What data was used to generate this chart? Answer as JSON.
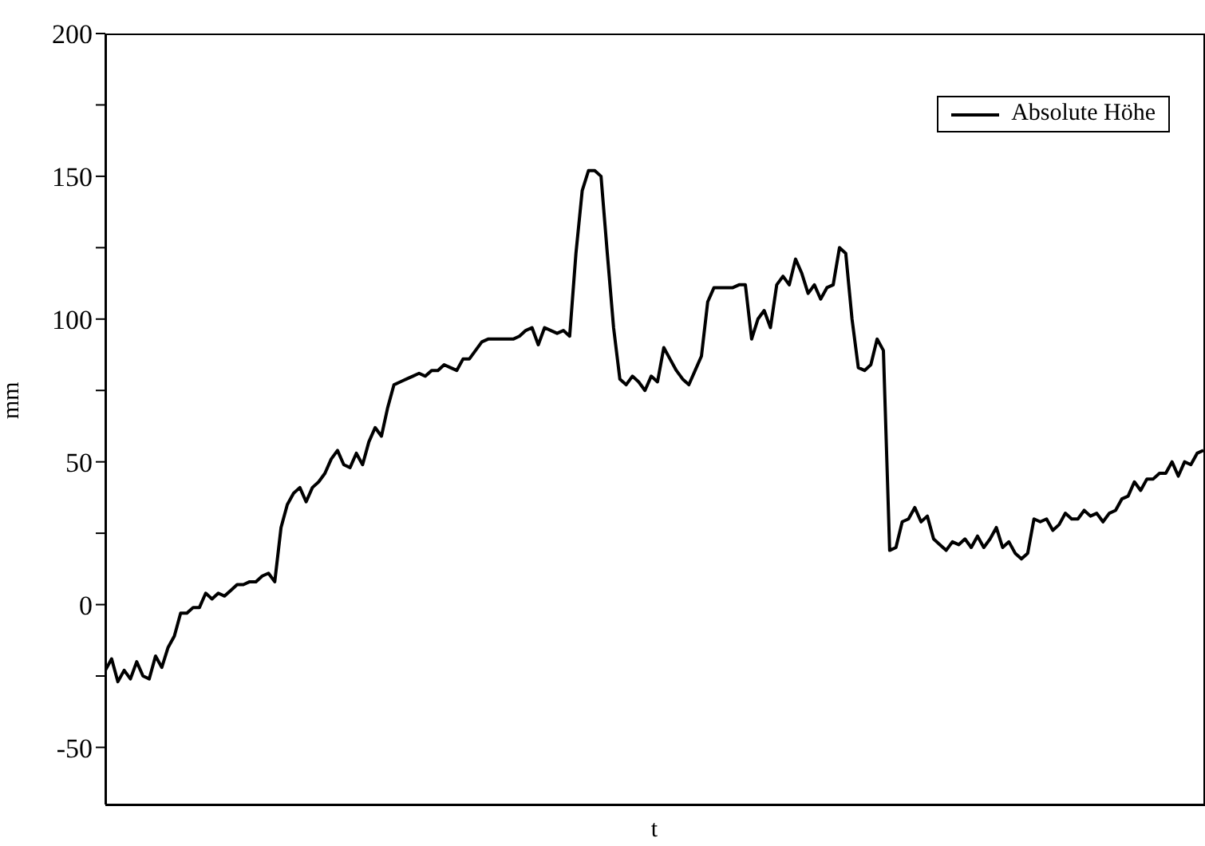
{
  "chart_data": {
    "type": "line",
    "xlabel": "t",
    "ylabel": "mm",
    "categories": [
      null,
      null,
      null,
      null,
      null,
      null,
      null,
      null,
      null,
      null,
      null,
      null,
      null,
      null,
      null,
      null,
      null,
      null,
      null,
      null,
      null,
      null,
      null,
      null,
      null,
      null,
      null,
      null,
      null,
      null,
      null,
      null,
      null,
      null,
      null,
      null,
      null,
      null,
      null,
      null,
      null,
      null,
      null,
      null,
      null,
      null,
      null,
      null,
      null,
      null,
      null,
      null,
      null,
      null,
      null,
      null,
      null,
      null,
      null,
      null,
      null,
      null,
      null,
      null,
      null,
      null,
      null,
      null,
      null,
      null,
      null,
      null,
      null,
      null,
      null,
      null,
      null,
      null,
      null,
      null,
      null,
      null,
      null,
      null,
      null,
      null,
      null,
      null,
      null,
      null,
      null,
      null,
      null,
      null,
      null,
      null,
      null,
      null,
      null,
      null,
      null,
      null,
      null,
      null,
      null,
      null,
      null,
      null,
      null,
      null,
      null,
      null,
      null,
      null,
      null,
      null,
      null,
      null,
      null,
      null,
      null,
      null,
      null,
      null,
      null,
      null,
      null,
      null,
      null,
      null,
      null,
      null,
      null,
      null,
      null,
      null,
      null,
      null,
      null,
      null,
      null,
      null,
      null,
      null,
      null,
      null,
      null,
      null,
      null,
      null,
      null,
      null,
      null,
      null,
      null,
      null,
      null,
      null,
      null,
      null,
      null,
      null,
      null,
      null,
      null,
      null,
      null,
      null,
      null,
      null,
      null,
      null,
      null,
      null,
      null,
      null
    ],
    "series": [
      {
        "name": "Absolute Höhe",
        "color": "#000000",
        "values": [
          -23,
          -19,
          -27,
          -23,
          -26,
          -20,
          -25,
          -26,
          -18,
          -22,
          -15,
          -11,
          -3,
          -3,
          -1,
          -1,
          4,
          2,
          4,
          3,
          5,
          7,
          7,
          8,
          8,
          10,
          11,
          8,
          27,
          35,
          39,
          41,
          36,
          41,
          43,
          46,
          51,
          54,
          49,
          48,
          53,
          49,
          57,
          62,
          59,
          69,
          77,
          78,
          79,
          80,
          81,
          80,
          82,
          82,
          84,
          83,
          82,
          86,
          86,
          89,
          92,
          93,
          93,
          93,
          93,
          93,
          94,
          96,
          97,
          91,
          97,
          96,
          95,
          96,
          94,
          123,
          145,
          152,
          152,
          150,
          123,
          97,
          79,
          77,
          80,
          78,
          75,
          80,
          78,
          90,
          86,
          82,
          79,
          77,
          82,
          87,
          106,
          111,
          111,
          111,
          111,
          112,
          112,
          93,
          100,
          103,
          97,
          112,
          115,
          112,
          121,
          116,
          109,
          112,
          107,
          111,
          112,
          125,
          123,
          100,
          83,
          82,
          84,
          93,
          89,
          19,
          20,
          29,
          30,
          34,
          29,
          31,
          23,
          21,
          19,
          22,
          21,
          23,
          20,
          24,
          20,
          23,
          27,
          20,
          22,
          18,
          16,
          18,
          30,
          29,
          30,
          26,
          28,
          32,
          30,
          30,
          33,
          31,
          32,
          29,
          32,
          33,
          37,
          38,
          43,
          40,
          44,
          44,
          46,
          46,
          50,
          45,
          50,
          49,
          53,
          54
        ]
      }
    ],
    "ylim": [
      -70,
      200
    ],
    "yticks": [
      {
        "value": -50,
        "label": "-50"
      },
      {
        "value": -25,
        "label": null
      },
      0,
      {
        "value": 25,
        "label": null
      },
      50,
      {
        "value": 75,
        "label": null
      },
      100,
      {
        "value": 125,
        "label": null
      },
      150,
      {
        "value": 175,
        "label": null
      },
      200
    ],
    "legend": "top right",
    "grid": false,
    "marker": "none",
    "line_style": "solid"
  }
}
